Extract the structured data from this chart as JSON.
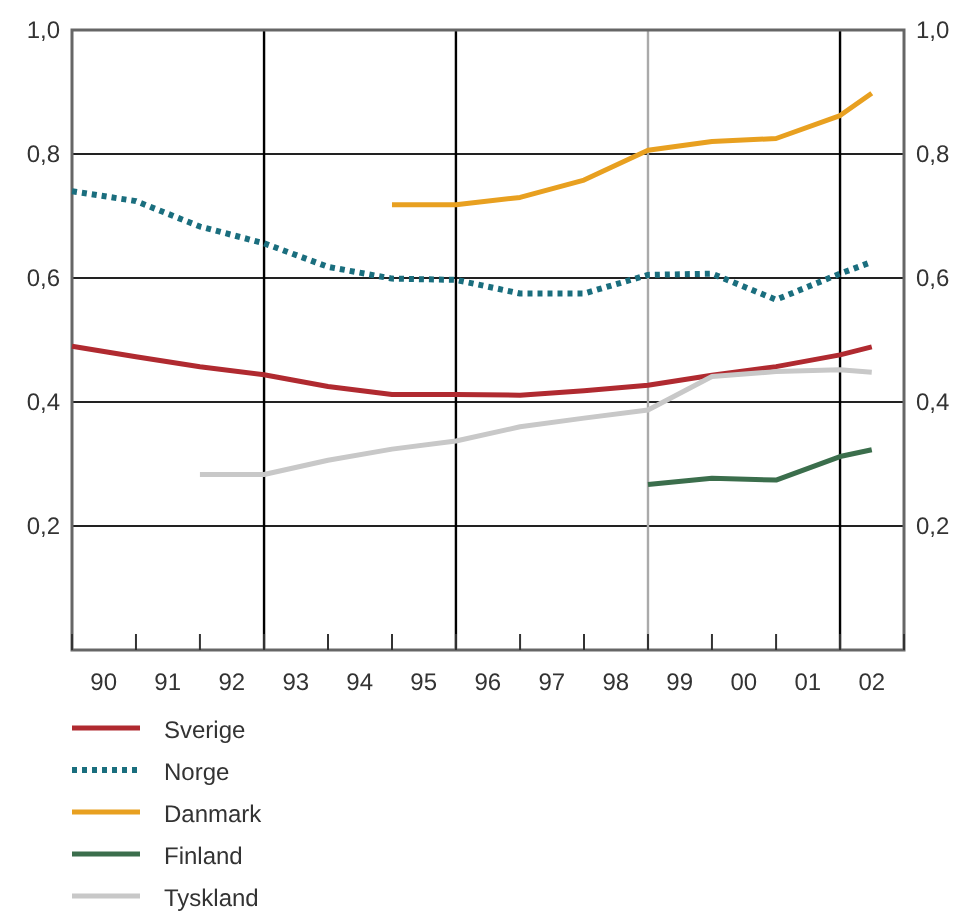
{
  "chart_data": {
    "type": "line",
    "xlim": [
      "1990",
      "2003"
    ],
    "xticks": [
      {
        "value": "1990",
        "label": null
      },
      {
        "value": "1990-07",
        "label": "90"
      },
      {
        "value": "1991",
        "label": null
      },
      {
        "value": "1991-07",
        "label": "91"
      },
      {
        "value": "1992",
        "label": null
      },
      {
        "value": "1992-07",
        "label": "92"
      },
      {
        "value": "1993",
        "label": null
      },
      {
        "value": "1993-07",
        "label": "93"
      },
      {
        "value": "1994",
        "label": null
      },
      {
        "value": "1994-07",
        "label": "94"
      },
      {
        "value": "1995",
        "label": null
      },
      {
        "value": "1995-07",
        "label": "95"
      },
      {
        "value": "1996",
        "label": null
      },
      {
        "value": "1996-07",
        "label": "96"
      },
      {
        "value": "1997",
        "label": null
      },
      {
        "value": "1997-07",
        "label": "97"
      },
      {
        "value": "1998",
        "label": null
      },
      {
        "value": "1998-07",
        "label": "98"
      },
      {
        "value": "1999",
        "label": null
      },
      {
        "value": "1999-07",
        "label": "99"
      },
      {
        "value": "2000",
        "label": null
      },
      {
        "value": "2000-07",
        "label": "00"
      },
      {
        "value": "2001",
        "label": null
      },
      {
        "value": "2001-07",
        "label": "01"
      },
      {
        "value": "2002",
        "label": null
      },
      {
        "value": "2002-07",
        "label": "02"
      },
      {
        "value": "2003",
        "label": null
      }
    ],
    "ylim": [
      0,
      1
    ],
    "yticks": [
      {
        "value": 0.2,
        "label": "0,2"
      },
      {
        "value": 0.4,
        "label": "0,4"
      },
      {
        "value": 0.6,
        "label": "0,6"
      },
      {
        "value": 0.8,
        "label": "0,8"
      },
      {
        "value": 1,
        "label": "1,0"
      }
    ],
    "y2lim": [
      0,
      1
    ],
    "y2ticks": [
      {
        "value": 0.2,
        "label": "0,2"
      },
      {
        "value": 0.4,
        "label": "0,4"
      },
      {
        "value": 0.6,
        "label": "0,6"
      },
      {
        "value": 0.8,
        "label": "0,8"
      },
      {
        "value": 1,
        "label": "1,0"
      }
    ],
    "grid": "y",
    "legend": "bottom",
    "marker": "none",
    "ref_lines": [
      {
        "axis": "x",
        "value": "1993",
        "color": "#000000"
      },
      {
        "axis": "x",
        "value": "1996",
        "color": "#000000"
      },
      {
        "axis": "x",
        "value": "1999",
        "color": "#aaaaaa"
      },
      {
        "axis": "x",
        "value": "2002",
        "color": "#000000"
      }
    ],
    "series": [
      {
        "name": "Sverige",
        "color": "#b02a30",
        "line_style": "solid",
        "x": [
          "1990",
          "1991",
          "1992",
          "1993",
          "1994",
          "1995",
          "1996",
          "1997",
          "1998",
          "1999",
          "2000",
          "2001",
          "2002",
          "2002-07"
        ],
        "values": [
          0.49,
          0.473,
          0.457,
          0.444,
          0.425,
          0.412,
          0.412,
          0.411,
          0.418,
          0.427,
          0.443,
          0.457,
          0.476,
          0.489
        ]
      },
      {
        "name": "Norge",
        "color": "#1a6e7e",
        "line_style": "dotted",
        "x": [
          "1990",
          "1991",
          "1992",
          "1993",
          "1994",
          "1995",
          "1996",
          "1997",
          "1998",
          "1999",
          "2000",
          "2001",
          "2002",
          "2002-07"
        ],
        "values": [
          0.74,
          0.724,
          0.683,
          0.656,
          0.618,
          0.599,
          0.597,
          0.575,
          0.575,
          0.605,
          0.607,
          0.565,
          0.607,
          0.626
        ]
      },
      {
        "name": "Danmark",
        "color": "#e8a020",
        "line_style": "solid",
        "x": [
          "1995",
          "1996",
          "1997",
          "1998",
          "1999",
          "2000",
          "2001",
          "2002",
          "2002-07"
        ],
        "values": [
          0.718,
          0.718,
          0.73,
          0.758,
          0.806,
          0.82,
          0.825,
          0.862,
          0.898
        ]
      },
      {
        "name": "Finland",
        "color": "#3b6e4c",
        "line_style": "solid",
        "x": [
          "1999",
          "2000",
          "2001",
          "2002",
          "2002-07"
        ],
        "values": [
          0.267,
          0.277,
          0.274,
          0.312,
          0.323
        ]
      },
      {
        "name": "Tyskland",
        "color": "#c8c8c8",
        "line_style": "solid",
        "x": [
          "1992",
          "1993",
          "1994",
          "1995",
          "1996",
          "1997",
          "1998",
          "1999",
          "2000",
          "2001",
          "2002",
          "2002-07"
        ],
        "values": [
          0.283,
          0.283,
          0.306,
          0.324,
          0.337,
          0.36,
          0.374,
          0.387,
          0.441,
          0.449,
          0.452,
          0.448
        ]
      }
    ]
  }
}
